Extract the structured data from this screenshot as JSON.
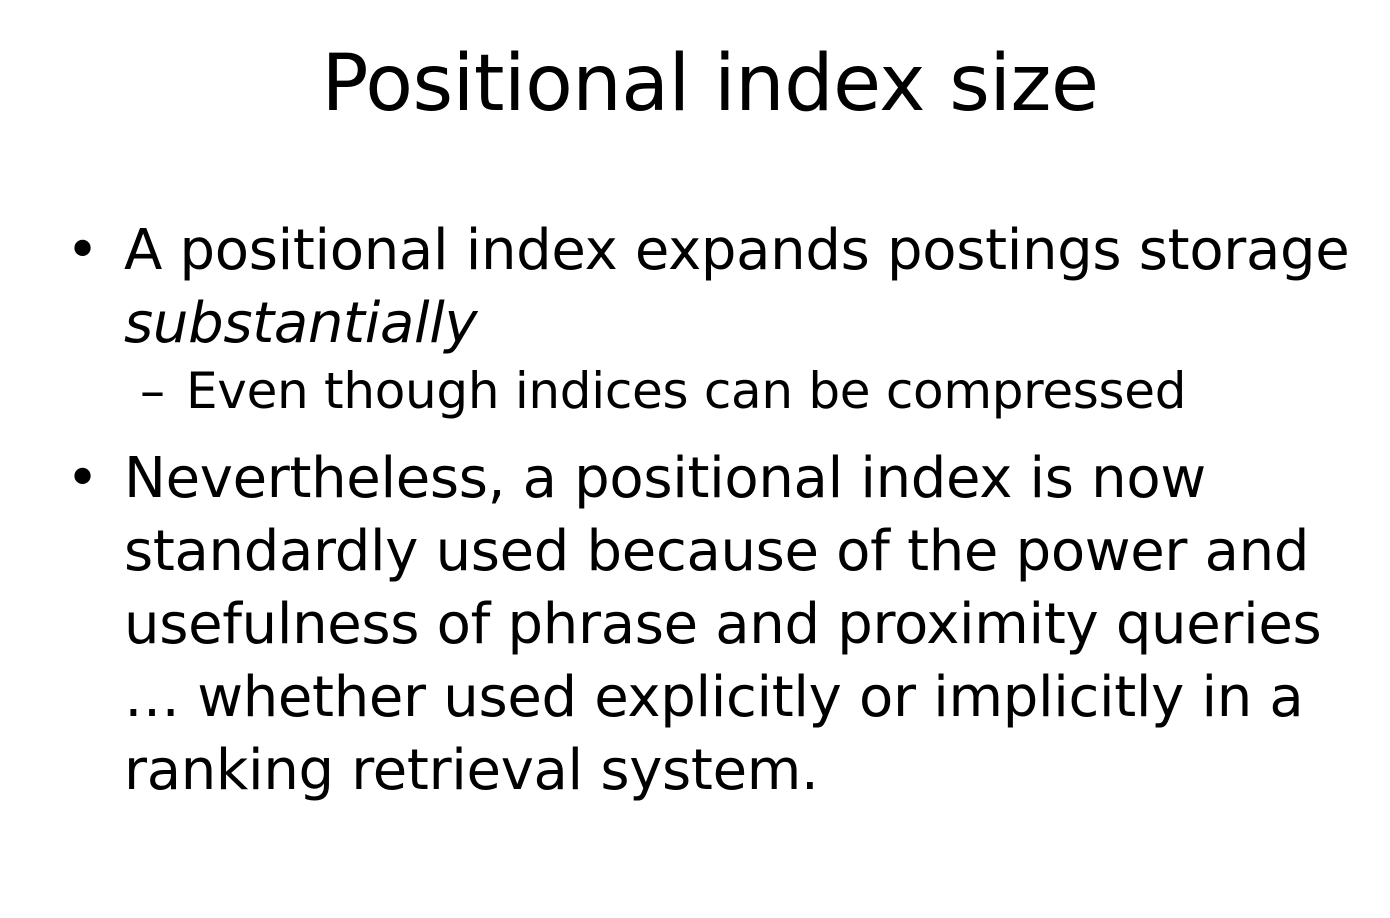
{
  "slide": {
    "title": "Positional index size",
    "bullets": [
      {
        "mark": "•",
        "text_before": "A positional index expands postings storage ",
        "text_italic": "substantially"
      },
      {
        "mark": "•",
        "text": "Nevertheless, a positional index is now standardly used because of the power and usefulness of phrase and proximity queries … whether used explicitly or implicitly in a ranking retrieval system."
      }
    ],
    "sub_bullets": [
      {
        "mark": "–",
        "text": "Even though indices can be compressed"
      }
    ]
  }
}
